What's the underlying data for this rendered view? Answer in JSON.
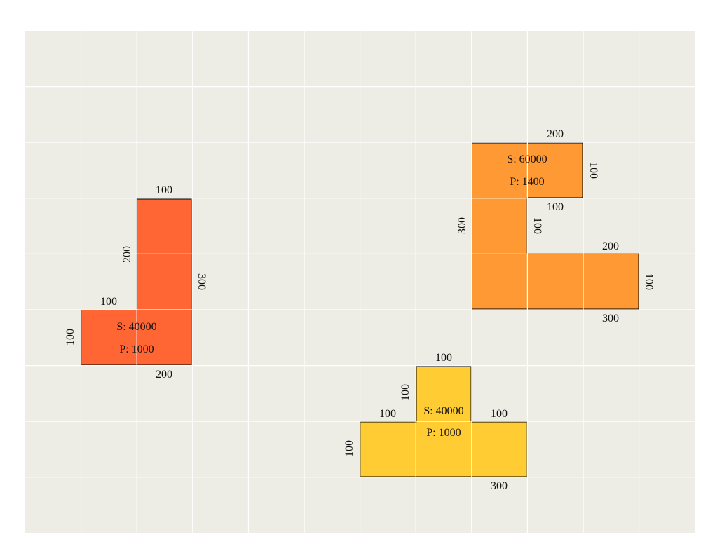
{
  "colors": {
    "background": "#edede5",
    "grid_line": "#ffffff",
    "shape_red": "#ff6633",
    "shape_orange": "#ff9933",
    "shape_yellow": "#ffcc33",
    "outline": "#000000"
  },
  "shapes": {
    "red": {
      "area_text": "S: 40000",
      "perimeter_text": "P: 1000",
      "labels": {
        "top": "100",
        "left_upper": "200",
        "right": "300",
        "step": "100",
        "left_lower": "100",
        "bottom": "200"
      }
    },
    "orange": {
      "area_text": "S: 60000",
      "perimeter_text": "P: 1400",
      "labels": {
        "top": "200",
        "right_upper": "100",
        "step_bottom": "100",
        "step_right": "100",
        "left": "300",
        "mid_top": "200",
        "right_lower": "100",
        "bottom": "300"
      }
    },
    "yellow": {
      "area_text": "S: 40000",
      "perimeter_text": "P: 1000",
      "labels": {
        "top": "100",
        "stem_left": "100",
        "left_top": "100",
        "right_top": "100",
        "left": "100",
        "bottom": "300"
      }
    }
  }
}
